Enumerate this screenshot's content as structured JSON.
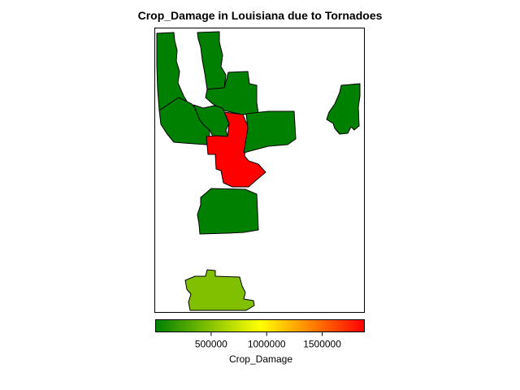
{
  "chart_data": {
    "type": "choropleth-map",
    "title": "Crop_Damage in Louisiana due to Tornadoes",
    "colorbar": {
      "label": "Crop_Damage",
      "orientation": "horizontal",
      "placement": "bottom",
      "range": [
        0,
        1880000
      ],
      "ticks": [
        500000,
        1000000,
        1500000
      ],
      "tick_labels": [
        "500000",
        "1000000",
        "1500000"
      ],
      "colormap": [
        "#008000",
        "#ffff00",
        "#ff0000"
      ]
    },
    "regions": [
      {
        "id": "north-west-strip",
        "value": 0
      },
      {
        "id": "north-mid-strip",
        "value": 0
      },
      {
        "id": "north-center",
        "value": 0
      },
      {
        "id": "west-block",
        "value": 0
      },
      {
        "id": "center-small",
        "value": 0
      },
      {
        "id": "center-red",
        "value": 1880000
      },
      {
        "id": "east-block",
        "value": 0
      },
      {
        "id": "far-east",
        "value": 0
      },
      {
        "id": "south-center",
        "value": 0
      },
      {
        "id": "bottom",
        "value": 470000
      }
    ]
  }
}
